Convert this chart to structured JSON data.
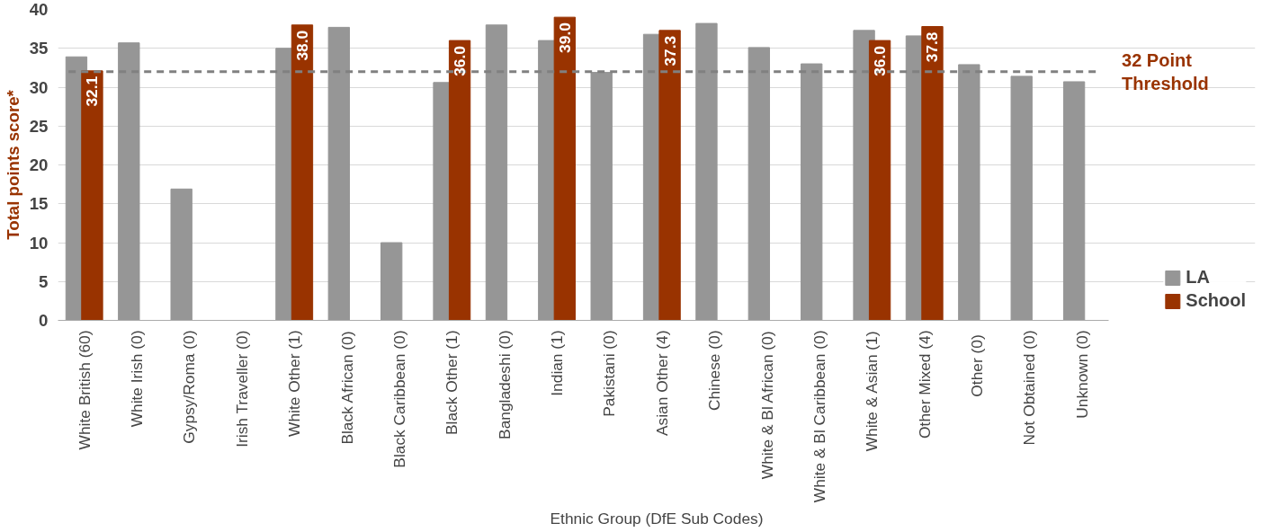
{
  "chart_data": {
    "type": "bar",
    "ylabel": "Total points score*",
    "xlabel": "Ethnic Group (DfE Sub Codes)",
    "categories": [
      "White British (60)",
      "White Irish (0)",
      "Gypsy/Roma (0)",
      "Irish Traveller (0)",
      "White Other (1)",
      "Black African (0)",
      "Black Caribbean (0)",
      "Black Other (1)",
      "Bangladeshi (0)",
      "Indian (1)",
      "Pakistani (0)",
      "Asian Other (4)",
      "Chinese (0)",
      "White & Bl African (0)",
      "White & Bl Caribbean (0)",
      "White & Asian (1)",
      "Other Mixed (4)",
      "Other  (0)",
      "Not Obtained (0)",
      "Unknown (0)"
    ],
    "series": [
      {
        "name": "LA",
        "color": "#969696",
        "values": [
          33.9,
          35.7,
          16.9,
          null,
          35.0,
          37.7,
          10.0,
          30.6,
          38.0,
          36.0,
          31.9,
          36.8,
          38.2,
          35.1,
          33.0,
          37.3,
          36.6,
          32.9,
          31.4,
          30.7
        ]
      },
      {
        "name": "School",
        "color": "#993300",
        "values": [
          32.1,
          null,
          null,
          null,
          38.0,
          null,
          null,
          36.0,
          null,
          39.0,
          null,
          37.3,
          null,
          null,
          null,
          36.0,
          37.8,
          null,
          null,
          null
        ],
        "value_labels": [
          "32.1",
          null,
          null,
          null,
          "38.0",
          null,
          null,
          "36.0",
          null,
          "39.0",
          null,
          "37.3",
          null,
          null,
          null,
          "36.0",
          "37.8",
          null,
          null,
          null
        ]
      }
    ],
    "ylim": [
      0,
      40
    ],
    "yticks": [
      0,
      5,
      10,
      15,
      20,
      25,
      30,
      35,
      40
    ],
    "grid": "y",
    "legend": "right",
    "ref_lines": [
      {
        "axis": "y",
        "value": 32,
        "label": "32 Point Threshold",
        "color": "#808080",
        "line_style": "dashed"
      }
    ]
  }
}
